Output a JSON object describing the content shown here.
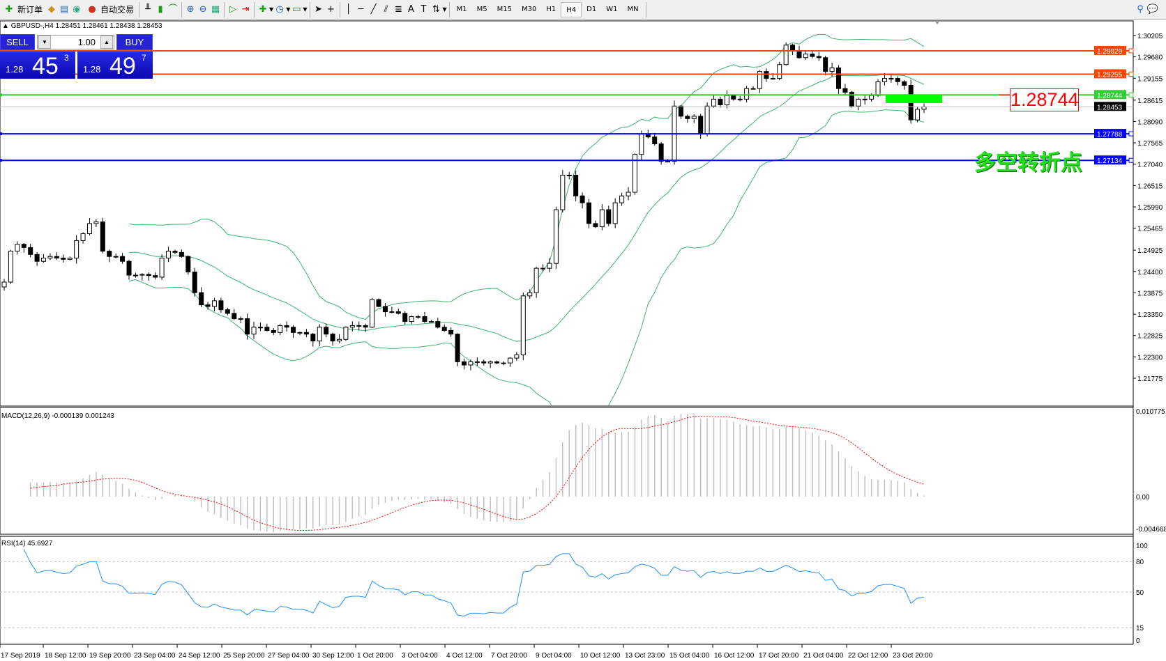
{
  "toolbar": {
    "new_order": "新订单",
    "auto_trading": "自动交易",
    "icons": [
      "new-order-icon",
      "market-watch-icon",
      "navigator-icon",
      "signals-icon",
      "auto-trading-icon",
      "bar-chart-icon",
      "candlestick-icon",
      "line-chart-icon",
      "zoom-in-icon",
      "zoom-out-icon",
      "tile-windows-icon",
      "autoscroll-icon",
      "chart-shift-icon",
      "indicators-icon",
      "periods-icon",
      "templates-icon",
      "cursor-icon",
      "crosshair-icon",
      "vertical-line-icon",
      "horizontal-line-icon",
      "trendline-icon",
      "equidistant-channel-icon",
      "fibonacci-icon",
      "text-icon",
      "text-label-icon",
      "arrows-icon"
    ],
    "timeframes": [
      "M1",
      "M5",
      "M15",
      "M30",
      "H1",
      "H4",
      "D1",
      "W1",
      "MN"
    ],
    "active_timeframe": "H4"
  },
  "chart": {
    "legend": "GBPUSD-,H4  1.28451 1.28461 1.28438 1.28453",
    "trade": {
      "sell": "SELL",
      "buy": "BUY",
      "lots": "1.00",
      "sell_small": "1.28",
      "sell_main": "45",
      "sell_sup": "3",
      "buy_small": "1.28",
      "buy_main": "49",
      "buy_sup": "7"
    },
    "annotation_price": "1.28744",
    "annotation_text": "多空转折点"
  },
  "chart_data": {
    "type": "candlestick",
    "symbol": "GBPUSD-",
    "timeframe": "H4",
    "ylim": [
      1.21775,
      1.30205
    ],
    "price_ticks": [
      "1.30205",
      "1.29680",
      "1.29155",
      "1.28615",
      "1.28090",
      "1.27565",
      "1.27040",
      "1.26515",
      "1.25990",
      "1.25465",
      "1.24925",
      "1.24400",
      "1.23875",
      "1.23350",
      "1.22825",
      "1.22300",
      "1.21775"
    ],
    "last_price": "1.28453",
    "hlines": [
      {
        "price": "1.29829",
        "color": "#ff4500"
      },
      {
        "price": "1.29255",
        "color": "#ff4500"
      },
      {
        "price": "1.28744",
        "color": "#32cd32"
      },
      {
        "price": "1.27788",
        "color": "#0000ff"
      },
      {
        "price": "1.27134",
        "color": "#0000ff"
      }
    ],
    "closes": [
      1.2414,
      1.249,
      1.2507,
      1.2499,
      1.2482,
      1.2465,
      1.2473,
      1.2477,
      1.2473,
      1.247,
      1.2473,
      1.2516,
      1.2533,
      1.2558,
      1.2562,
      1.249,
      1.2477,
      1.2477,
      1.2465,
      1.2431,
      1.2431,
      1.2433,
      1.243,
      1.2426,
      1.2473,
      1.249,
      1.2487,
      1.2477,
      1.2439,
      1.2388,
      1.2358,
      1.2354,
      1.2368,
      1.2346,
      1.2337,
      1.2324,
      1.2324,
      1.2286,
      1.2303,
      1.2303,
      1.2295,
      1.229,
      1.2307,
      1.2303,
      1.229,
      1.229,
      1.2286,
      1.2269,
      1.2303,
      1.2286,
      1.2269,
      1.2273,
      1.2303,
      1.2307,
      1.2307,
      1.2303,
      1.2371,
      1.2354,
      1.2341,
      1.2341,
      1.2337,
      1.2317,
      1.2329,
      1.2329,
      1.2317,
      1.2317,
      1.2303,
      1.2295,
      1.2286,
      1.2218,
      1.221,
      1.2218,
      1.2218,
      1.2215,
      1.2218,
      1.2215,
      1.2215,
      1.2227,
      1.2235,
      1.238,
      1.2388,
      1.2448,
      1.2448,
      1.246,
      1.2592,
      1.2677,
      1.2677,
      1.2626,
      1.2609,
      1.2558,
      1.255,
      1.2592,
      1.2558,
      1.2609,
      1.2626,
      1.2635,
      1.2728,
      1.2779,
      1.2771,
      1.2754,
      1.2711,
      1.2711,
      1.2847,
      1.2822,
      1.2816,
      1.2822,
      1.2779,
      1.2847,
      1.2864,
      1.285,
      1.2873,
      1.2864,
      1.2864,
      1.289,
      1.289,
      1.2932,
      1.2915,
      1.2915,
      1.2949,
      1.2997,
      1.2983,
      1.2966,
      1.2975,
      1.2969,
      1.2966,
      1.2932,
      1.2941,
      1.289,
      1.2881,
      1.2847,
      1.2864,
      1.2864,
      1.2873,
      1.2907,
      1.2915,
      1.2915,
      1.2907,
      1.2898,
      1.2813,
      1.2839,
      1.2845
    ],
    "indicators": {
      "bollinger": {
        "color": "#3cb371"
      },
      "macd": {
        "label": "MACD(12,26,9) -0.000139 0.001243",
        "ticks": [
          "0.010775",
          "0.00",
          "-0.004668"
        ],
        "ylim": [
          -0.004668,
          0.010775
        ],
        "hist_color": "#c0c0c0",
        "signal_color": "#ff0000"
      },
      "rsi": {
        "label": "RSI(14) 45.6927",
        "ticks": [
          "100",
          "80",
          "50",
          "15",
          "0"
        ],
        "levels": [
          80,
          50,
          15
        ],
        "color": "#1e90ff"
      }
    },
    "time_labels": [
      "17 Sep 2019",
      "18 Sep 12:00",
      "19 Sep 20:00",
      "23 Sep 04:00",
      "24 Sep 12:00",
      "25 Sep 20:00",
      "27 Sep 04:00",
      "30 Sep 12:00",
      "1 Oct 20:00",
      "3 Oct 04:00",
      "4 Oct 12:00",
      "7 Oct 20:00",
      "9 Oct 04:00",
      "10 Oct 12:00",
      "13 Oct 23:00",
      "15 Oct 04:00",
      "16 Oct 12:00",
      "17 Oct 20:00",
      "21 Oct 04:00",
      "22 Oct 12:00",
      "23 Oct 20:00"
    ]
  }
}
